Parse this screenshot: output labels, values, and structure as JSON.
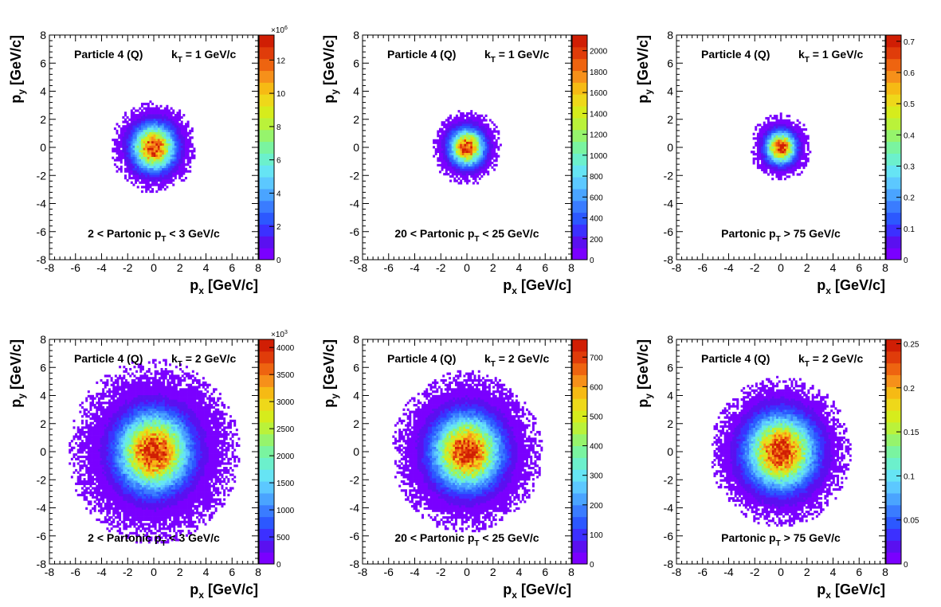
{
  "chart_data": [
    {
      "type": "heatmap",
      "particle_label": "Particle 4 (Q)",
      "kt_label": {
        "main": "k",
        "sub": "T",
        "rest": " = 1 GeV/c"
      },
      "range_label": {
        "main": "2 < Partonic p",
        "sub": "T",
        "rest": " < 3 GeV/c"
      },
      "xlabel": {
        "main": "p",
        "sub": "x",
        "rest": " [GeV/c]"
      },
      "ylabel": {
        "main": "p",
        "sub": "y",
        "rest": " [GeV/c]"
      },
      "xlim": [
        -8,
        8
      ],
      "ylim": [
        -8,
        8
      ],
      "xticks": [
        "-8",
        "-6",
        "-4",
        "-2",
        "0",
        "2",
        "4",
        "6",
        "8"
      ],
      "yticks": [
        "-8",
        "-6",
        "-4",
        "-2",
        "0",
        "2",
        "4",
        "6",
        "8"
      ],
      "distribution_sigma": 1.0,
      "distribution_extent": 3.3,
      "colorbar": {
        "min": 0,
        "max": 13.5,
        "multiplier": "×10",
        "exponent": "6",
        "tick_values": [
          0,
          2,
          4,
          6,
          8,
          10,
          12
        ],
        "tick_labels": [
          "0",
          "2",
          "4",
          "6",
          "8",
          "10",
          "12"
        ]
      }
    },
    {
      "type": "heatmap",
      "particle_label": "Particle 4 (Q)",
      "kt_label": {
        "main": "k",
        "sub": "T",
        "rest": " = 1 GeV/c"
      },
      "range_label": {
        "main": "20 < Partonic p",
        "sub": "T",
        "rest": " < 25 GeV/c"
      },
      "xlabel": {
        "main": "p",
        "sub": "x",
        "rest": " [GeV/c]"
      },
      "ylabel": {
        "main": "p",
        "sub": "y",
        "rest": " [GeV/c]"
      },
      "xlim": [
        -8,
        8
      ],
      "ylim": [
        -8,
        8
      ],
      "xticks": [
        "-8",
        "-6",
        "-4",
        "-2",
        "0",
        "2",
        "4",
        "6",
        "8"
      ],
      "yticks": [
        "-8",
        "-6",
        "-4",
        "-2",
        "0",
        "2",
        "4",
        "6",
        "8"
      ],
      "distribution_sigma": 0.8,
      "distribution_extent": 2.7,
      "colorbar": {
        "min": 0,
        "max": 2150,
        "multiplier": "",
        "exponent": "",
        "tick_values": [
          0,
          200,
          400,
          600,
          800,
          1000,
          1200,
          1400,
          1600,
          1800,
          2000
        ],
        "tick_labels": [
          "0",
          "200",
          "400",
          "600",
          "800",
          "1000",
          "1200",
          "1400",
          "1600",
          "1800",
          "2000"
        ]
      }
    },
    {
      "type": "heatmap",
      "particle_label": "Particle 4 (Q)",
      "kt_label": {
        "main": "k",
        "sub": "T",
        "rest": " = 1 GeV/c"
      },
      "range_label": {
        "main": "Partonic p",
        "sub": "T",
        "rest": " > 75 GeV/c"
      },
      "xlabel": {
        "main": "p",
        "sub": "x",
        "rest": " [GeV/c]"
      },
      "ylabel": {
        "main": "p",
        "sub": "y",
        "rest": " [GeV/c]"
      },
      "xlim": [
        -8,
        8
      ],
      "ylim": [
        -8,
        8
      ],
      "xticks": [
        "-8",
        "-6",
        "-4",
        "-2",
        "0",
        "2",
        "4",
        "6",
        "8"
      ],
      "yticks": [
        "-8",
        "-6",
        "-4",
        "-2",
        "0",
        "2",
        "4",
        "6",
        "8"
      ],
      "distribution_sigma": 0.7,
      "distribution_extent": 2.4,
      "colorbar": {
        "min": 0,
        "max": 0.72,
        "multiplier": "",
        "exponent": "",
        "tick_values": [
          0,
          0.1,
          0.2,
          0.3,
          0.4,
          0.5,
          0.6,
          0.7
        ],
        "tick_labels": [
          "0",
          "0.1",
          "0.2",
          "0.3",
          "0.4",
          "0.5",
          "0.6",
          "0.7"
        ]
      }
    },
    {
      "type": "heatmap",
      "particle_label": "Particle 4 (Q)",
      "kt_label": {
        "main": "k",
        "sub": "T",
        "rest": " = 2 GeV/c"
      },
      "range_label": {
        "main": "2 < Partonic p",
        "sub": "T",
        "rest": " < 3 GeV/c"
      },
      "xlabel": {
        "main": "p",
        "sub": "x",
        "rest": " [GeV/c]"
      },
      "ylabel": {
        "main": "p",
        "sub": "y",
        "rest": " [GeV/c]"
      },
      "xlim": [
        -8,
        8
      ],
      "ylim": [
        -8,
        8
      ],
      "xticks": [
        "-8",
        "-6",
        "-4",
        "-2",
        "0",
        "2",
        "4",
        "6",
        "8"
      ],
      "yticks": [
        "-8",
        "-6",
        "-4",
        "-2",
        "0",
        "2",
        "4",
        "6",
        "8"
      ],
      "distribution_sigma": 1.7,
      "distribution_extent": 6.6,
      "colorbar": {
        "min": 0,
        "max": 4150,
        "multiplier": "×10",
        "exponent": "3",
        "tick_values": [
          0,
          500,
          1000,
          1500,
          2000,
          2500,
          3000,
          3500,
          4000
        ],
        "tick_labels": [
          "0",
          "500",
          "1000",
          "1500",
          "2000",
          "2500",
          "3000",
          "3500",
          "4000"
        ]
      }
    },
    {
      "type": "heatmap",
      "particle_label": "Particle 4 (Q)",
      "kt_label": {
        "main": "k",
        "sub": "T",
        "rest": " = 2 GeV/c"
      },
      "range_label": {
        "main": "20 < Partonic p",
        "sub": "T",
        "rest": " < 25 GeV/c"
      },
      "xlabel": {
        "main": "p",
        "sub": "x",
        "rest": " [GeV/c]"
      },
      "ylabel": {
        "main": "p",
        "sub": "y",
        "rest": " [GeV/c]"
      },
      "xlim": [
        -8,
        8
      ],
      "ylim": [
        -8,
        8
      ],
      "xticks": [
        "-8",
        "-6",
        "-4",
        "-2",
        "0",
        "2",
        "4",
        "6",
        "8"
      ],
      "yticks": [
        "-8",
        "-6",
        "-4",
        "-2",
        "0",
        "2",
        "4",
        "6",
        "8"
      ],
      "distribution_sigma": 1.6,
      "distribution_extent": 5.8,
      "colorbar": {
        "min": 0,
        "max": 760,
        "multiplier": "",
        "exponent": "",
        "tick_values": [
          0,
          100,
          200,
          300,
          400,
          500,
          600,
          700
        ],
        "tick_labels": [
          "0",
          "100",
          "200",
          "300",
          "400",
          "500",
          "600",
          "700"
        ]
      }
    },
    {
      "type": "heatmap",
      "particle_label": "Particle 4 (Q)",
      "kt_label": {
        "main": "k",
        "sub": "T",
        "rest": " = 2 GeV/c"
      },
      "range_label": {
        "main": "Partonic p",
        "sub": "T",
        "rest": " > 75 GeV/c"
      },
      "xlabel": {
        "main": "p",
        "sub": "x",
        "rest": " [GeV/c]"
      },
      "ylabel": {
        "main": "p",
        "sub": "y",
        "rest": " [GeV/c]"
      },
      "xlim": [
        -8,
        8
      ],
      "ylim": [
        -8,
        8
      ],
      "xticks": [
        "-8",
        "-6",
        "-4",
        "-2",
        "0",
        "2",
        "4",
        "6",
        "8"
      ],
      "yticks": [
        "-8",
        "-6",
        "-4",
        "-2",
        "0",
        "2",
        "4",
        "6",
        "8"
      ],
      "distribution_sigma": 1.6,
      "distribution_extent": 5.4,
      "colorbar": {
        "min": 0,
        "max": 0.255,
        "multiplier": "",
        "exponent": "",
        "tick_values": [
          0,
          0.05,
          0.1,
          0.15,
          0.2,
          0.25
        ],
        "tick_labels": [
          "0",
          "0.05",
          "0.1",
          "0.15",
          "0.2",
          "0.25"
        ]
      }
    }
  ],
  "palette": [
    "#7a00ff",
    "#5a10f0",
    "#3c30ff",
    "#2c58ff",
    "#3a7cff",
    "#4aa4ff",
    "#5cc8ff",
    "#66e4f4",
    "#6cf0cc",
    "#7af4a0",
    "#96f46c",
    "#baf23a",
    "#d6ec1c",
    "#eed81a",
    "#f6ba14",
    "#f6901a",
    "#ee6410",
    "#e03c0a",
    "#d01e04"
  ]
}
